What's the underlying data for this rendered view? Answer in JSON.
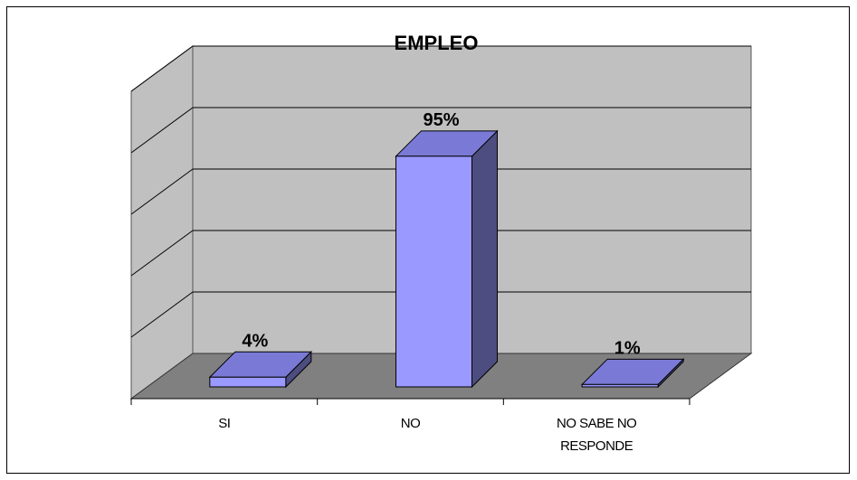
{
  "chart_data": {
    "type": "bar",
    "title": "EMPLEO",
    "categories": [
      "SI",
      "NO",
      "NO SABE NO RESPONDE"
    ],
    "category_lines": [
      [
        "SI"
      ],
      [
        "NO"
      ],
      [
        "NO SABE NO",
        "RESPONDE"
      ]
    ],
    "values": [
      4,
      95,
      1
    ],
    "data_labels": [
      "4%",
      "95%",
      "1%"
    ],
    "ylim": [
      0,
      100
    ],
    "grid": true,
    "legend": "none",
    "colors": {
      "bar_front": "#9999ff",
      "bar_top": "#7a7ad6",
      "bar_side": "#4d4d80",
      "back_wall": "#c0c0c0",
      "side_wall": "#c0c0c0",
      "floor": "#808080",
      "grid": "#000000"
    }
  }
}
